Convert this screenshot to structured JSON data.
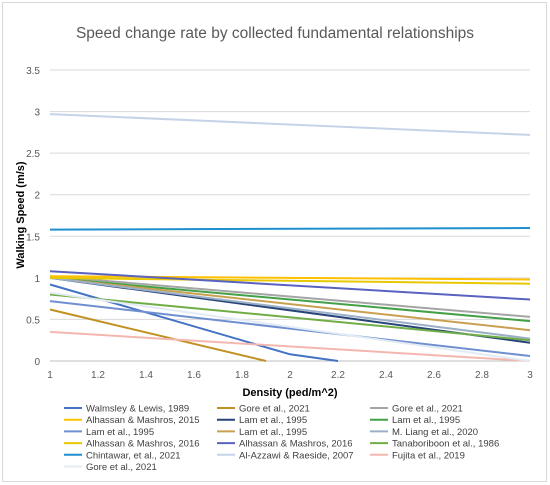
{
  "chart_data": {
    "type": "line",
    "title": "Speed change rate by collected fundamental relationships",
    "xlabel": "Density (ped/m^2)",
    "ylabel": "Walking Speed (m/s)",
    "xlim": [
      1,
      3
    ],
    "ylim": [
      0,
      3.5
    ],
    "x_ticks": [
      "1",
      "1.2",
      "1.4",
      "1.6",
      "1.8",
      "2",
      "2.2",
      "2.4",
      "2.6",
      "2.8",
      "3"
    ],
    "y_ticks": [
      "0",
      "0.5",
      "1",
      "1.5",
      "2",
      "2.5",
      "3",
      "3.5"
    ],
    "grid": "horizontal",
    "legend_position": "bottom",
    "series": [
      {
        "name": "Walmsley & Lewis, 1989",
        "color": "#4472c4",
        "x": [
          1,
          2,
          2.2
        ],
        "y": [
          0.92,
          0.08,
          0.0
        ]
      },
      {
        "name": "Gore et al., 2021",
        "color": "#c09020",
        "x": [
          1,
          1.9
        ],
        "y": [
          0.62,
          0.0
        ]
      },
      {
        "name": "Gore et al., 2021",
        "color": "#a5a5a5",
        "x": [
          1,
          3
        ],
        "y": [
          1.02,
          0.53
        ]
      },
      {
        "name": "Alhassan & Mashros, 2015",
        "color": "#ffc000",
        "x": [
          1,
          3
        ],
        "y": [
          1.02,
          0.98
        ]
      },
      {
        "name": "Lam et al., 1995",
        "color": "#264478",
        "x": [
          1,
          3
        ],
        "y": [
          1.0,
          0.22
        ]
      },
      {
        "name": "Lam et al., 1995",
        "color": "#43a047",
        "x": [
          1,
          3
        ],
        "y": [
          1.0,
          0.48
        ]
      },
      {
        "name": "Lam et al., 1995",
        "color": "#6f8fd0",
        "x": [
          1,
          3
        ],
        "y": [
          0.72,
          0.06
        ]
      },
      {
        "name": "Lam et al., 1995",
        "color": "#c9a050",
        "x": [
          1,
          3
        ],
        "y": [
          1.0,
          0.37
        ]
      },
      {
        "name": "M. Liang et al., 2020",
        "color": "#9bb0c8",
        "x": [
          1,
          3
        ],
        "y": [
          1.0,
          0.27
        ]
      },
      {
        "name": "Alhassan & Mashros, 2016",
        "color": "#e8c800",
        "x": [
          1,
          3
        ],
        "y": [
          1.0,
          0.93
        ]
      },
      {
        "name": "Alhassan & Mashros, 2016",
        "color": "#5a62c0",
        "x": [
          1,
          3
        ],
        "y": [
          1.08,
          0.74
        ]
      },
      {
        "name": "Tanaboriboon et al., 1986",
        "color": "#70ad47",
        "x": [
          1,
          3
        ],
        "y": [
          0.8,
          0.25
        ]
      },
      {
        "name": "Chintawar, et al., 2021",
        "color": "#1f8fcf",
        "x": [
          1,
          3
        ],
        "y": [
          1.58,
          1.6
        ]
      },
      {
        "name": "Al-Azzawi & Raeside, 2007",
        "color": "#c5d3e8",
        "x": [
          1,
          3
        ],
        "y": [
          2.97,
          2.72
        ]
      },
      {
        "name": "Fujita et al., 2019",
        "color": "#f4b7b0",
        "x": [
          1,
          3
        ],
        "y": [
          0.35,
          0.0
        ]
      },
      {
        "name": "Gore et al., 2021",
        "color": "#e3ebf4",
        "x": [
          1,
          3
        ],
        "y": [
          0.82,
          0.0
        ]
      }
    ]
  }
}
